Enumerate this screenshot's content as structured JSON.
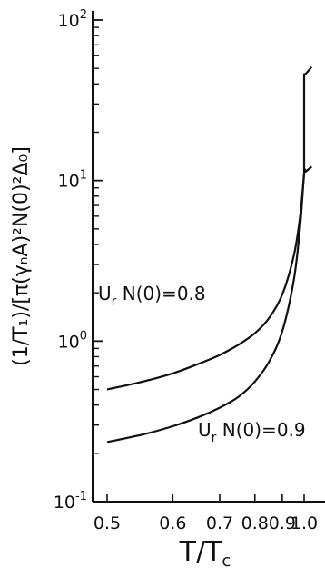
{
  "chart_data": {
    "type": "line",
    "xscale": "reciprocal",
    "yscale": "log",
    "xlim": [
      0.5,
      1.05
    ],
    "ylim": [
      0.1,
      100
    ],
    "x_ticks": [
      "0.5",
      "0.6",
      "0.7",
      "0.8",
      "0.9",
      "1.0"
    ],
    "y_ticks": [
      {
        "base": "10",
        "exp": "-1"
      },
      {
        "base": "10",
        "exp": "0"
      },
      {
        "base": "10",
        "exp": "1"
      },
      {
        "base": "10",
        "exp": "2"
      }
    ],
    "xlabel": {
      "main": "T/T",
      "sub": "c"
    },
    "ylabel": "(1/T₁)/[π(γₙA)²N(0)²Δ₀]",
    "series": [
      {
        "label_parts": [
          "U",
          "r",
          " N(0)=0.8"
        ],
        "x": [
          0.5,
          0.55,
          0.6,
          0.65,
          0.7,
          0.75,
          0.8,
          0.85,
          0.9,
          0.95,
          0.98,
          1.0,
          1.0,
          1.01,
          1.04
        ],
        "y": [
          0.5,
          0.56,
          0.63,
          0.72,
          0.82,
          0.95,
          1.12,
          1.4,
          1.95,
          3.4,
          6.0,
          11.0,
          46.0,
          46.5,
          51.0
        ]
      },
      {
        "label_parts": [
          "U",
          "r",
          " N(0)=0.9"
        ],
        "x": [
          0.5,
          0.55,
          0.6,
          0.65,
          0.7,
          0.75,
          0.8,
          0.85,
          0.9,
          0.95,
          0.98,
          1.0,
          1.01,
          1.04
        ],
        "y": [
          0.235,
          0.262,
          0.295,
          0.335,
          0.385,
          0.45,
          0.56,
          0.75,
          1.15,
          2.4,
          5.2,
          11.0,
          11.4,
          12.2
        ]
      }
    ],
    "grid": false
  }
}
